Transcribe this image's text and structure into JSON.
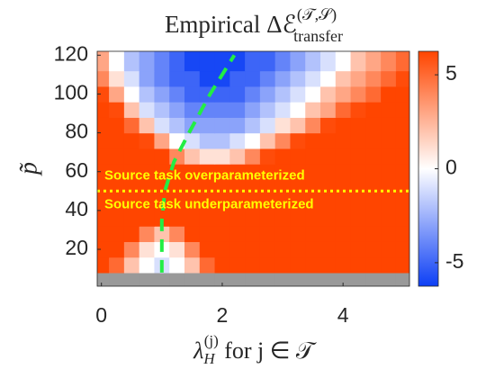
{
  "chart_data": {
    "type": "heatmap",
    "title": "Empirical Δℰ",
    "title_superscript": "(𝒯,𝒮)",
    "title_subscript": "transfer",
    "xlabel": "λ",
    "xlabel_subscript": "H",
    "xlabel_superscript": "(j)",
    "xlabel_suffix": " for j ∈ 𝒯",
    "ylabel": "p̃",
    "x": [
      0,
      0.25,
      0.5,
      0.75,
      1,
      1.25,
      1.5,
      1.75,
      2,
      2.25,
      2.5,
      2.75,
      3,
      3.25,
      3.5,
      3.75,
      4,
      4.25,
      4.5,
      4.75,
      5
    ],
    "y": [
      4,
      12,
      20,
      28,
      36,
      44,
      52,
      60,
      68,
      76,
      84,
      92,
      100,
      108,
      116
    ],
    "z": [
      [
        null,
        null,
        null,
        null,
        null,
        null,
        null,
        null,
        null,
        null,
        null,
        null,
        null,
        null,
        null,
        null,
        null,
        null,
        null,
        null,
        null
      ],
      [
        7,
        5,
        2,
        0,
        -1,
        0,
        2,
        5,
        7,
        7,
        7,
        7,
        7,
        7,
        7,
        7,
        7,
        7,
        7,
        7,
        7
      ],
      [
        7,
        7,
        4,
        1,
        0,
        1,
        4,
        7,
        7,
        7,
        7,
        7,
        7,
        7,
        7,
        7,
        7,
        7,
        7,
        7,
        7
      ],
      [
        7,
        7,
        7,
        4,
        2,
        4,
        7,
        7,
        7,
        7,
        7,
        7,
        7,
        7,
        7,
        7,
        7,
        7,
        7,
        7,
        7
      ],
      [
        7,
        7,
        7,
        7,
        7,
        7,
        7,
        7,
        7,
        7,
        7,
        7,
        7,
        7,
        7,
        7,
        7,
        7,
        7,
        7,
        7
      ],
      [
        7,
        7,
        7,
        7,
        7,
        7,
        7,
        7,
        7,
        7,
        7,
        7,
        7,
        7,
        7,
        7,
        7,
        7,
        7,
        7,
        7
      ],
      [
        7,
        7,
        7,
        7,
        7,
        7,
        7,
        7,
        7,
        7,
        7,
        7,
        7,
        7,
        7,
        7,
        7,
        7,
        7,
        7,
        7
      ],
      [
        7,
        7,
        7,
        7,
        7,
        7,
        7,
        7,
        7,
        7,
        7,
        7,
        7,
        7,
        7,
        7,
        7,
        7,
        7,
        7,
        7
      ],
      [
        7,
        7,
        7,
        7,
        7,
        4,
        2,
        1,
        1,
        2,
        4,
        6,
        7,
        7,
        7,
        7,
        7,
        7,
        7,
        7,
        7
      ],
      [
        7,
        7,
        7,
        6,
        3,
        0,
        -1,
        -2,
        -2,
        -1,
        0,
        2,
        4,
        6,
        7,
        7,
        7,
        7,
        7,
        7,
        7
      ],
      [
        7,
        7,
        5,
        2,
        -1,
        -2,
        -3,
        -3,
        -3,
        -3,
        -2,
        -1,
        1,
        2,
        4,
        6,
        7,
        7,
        7,
        7,
        7
      ],
      [
        7,
        6,
        2,
        -1,
        -2,
        -3,
        -4,
        -4,
        -4,
        -4,
        -3,
        -2,
        -1,
        0,
        2,
        3,
        5,
        6,
        7,
        7,
        7
      ],
      [
        6,
        3,
        0,
        -2,
        -3,
        -4,
        -5,
        -5,
        -5,
        -5,
        -4,
        -3,
        -2,
        -1,
        0,
        2,
        3,
        4,
        5,
        7,
        7
      ],
      [
        4,
        1,
        -1,
        -3,
        -4,
        -5,
        -5,
        -6,
        -6,
        -5,
        -5,
        -4,
        -3,
        -2,
        -1,
        0,
        2,
        3,
        4,
        5,
        6
      ],
      [
        3,
        0,
        -2,
        -3,
        -4,
        -5,
        -6,
        -6,
        -6,
        -6,
        -5,
        -5,
        -4,
        -3,
        -2,
        -1,
        0,
        2,
        3,
        4,
        5
      ]
    ],
    "xlim": [
      -0.07,
      5.1
    ],
    "ylim": [
      1,
      122
    ],
    "xticks": [
      0,
      2,
      4
    ],
    "yticks": [
      20,
      40,
      60,
      80,
      100,
      120
    ],
    "clim": [
      -6.25,
      6.25
    ],
    "cticks": [
      -5,
      0,
      5
    ],
    "colormap": [
      "#0d3ff5",
      "#ffffff",
      "#ff4500"
    ],
    "null_color": "#999999",
    "overlay": {
      "x": [
        1,
        1,
        1,
        1.05,
        1.2,
        1.45,
        1.8,
        2.2
      ],
      "y": [
        8,
        20,
        35,
        50,
        65,
        80,
        100,
        120
      ],
      "color": "#22ee44",
      "dashed": true
    },
    "hline": {
      "y": 50,
      "color": "#ffff00"
    },
    "annotations": [
      "Source task overparameterized",
      "Source task underparameterized"
    ]
  }
}
